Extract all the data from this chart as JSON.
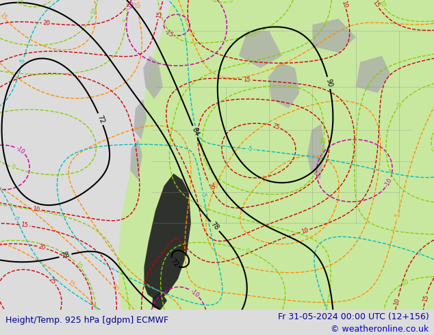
{
  "title_left": "Height/Temp. 925 hPa [gdpm] ECMWF",
  "title_right": "Fr 31-05-2024 00:00 UTC (12+156)",
  "copyright": "© weatheronline.co.uk",
  "fig_width": 6.34,
  "fig_height": 4.9,
  "dpi": 100,
  "bg_color": "#dcdcdc",
  "bottom_bar_color": "#e0e0f0",
  "bottom_text_color": "#00008b",
  "copyright_color": "#0000cc",
  "font_size_bottom": 9,
  "font_size_copyright": 9,
  "land_green": "#c8e8a0",
  "gray_terrain": "#aaaaaa",
  "dark_terrain": "#222222",
  "black_contour_color": "#000000",
  "orange_color": "#ff8c00",
  "red_color": "#cc0000",
  "magenta_color": "#cc00aa",
  "cyan_color": "#00bbbb",
  "green_color": "#88cc00",
  "state_border_color": "#888888",
  "ocean_color": "#dcdcdc"
}
